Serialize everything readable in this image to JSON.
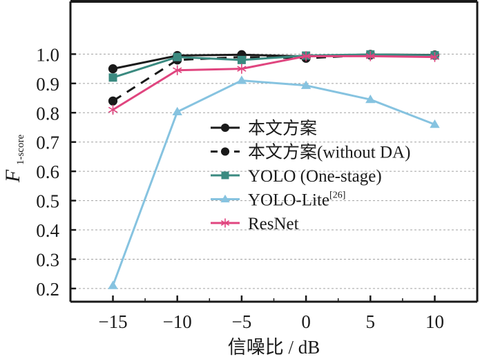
{
  "chart_data": {
    "type": "line",
    "title": "",
    "xlabel": "信噪比 / dB",
    "ylabel_main": "F",
    "ylabel_sub": "1-score",
    "x": [
      -15,
      -10,
      -5,
      0,
      5,
      10
    ],
    "xticks": [
      "−15",
      "−10",
      "−5",
      "0",
      "5",
      "10"
    ],
    "yticks": [
      "0.2",
      "0.3",
      "0.4",
      "0.5",
      "0.6",
      "0.7",
      "0.8",
      "0.9",
      "1.0"
    ],
    "ytick_values": [
      0.2,
      0.3,
      0.4,
      0.5,
      0.6,
      0.7,
      0.8,
      0.9,
      1.0
    ],
    "xlim": [
      -18.3,
      13.3
    ],
    "ylim": [
      0.155,
      1.18
    ],
    "grid": "horizontal-dashed",
    "legend_position": "center-right",
    "series": [
      {
        "name": "本文方案",
        "sup": "",
        "color": "#1a1a1a",
        "marker": "circle",
        "dash": "solid",
        "values": [
          0.95,
          0.995,
          0.998,
          0.992,
          0.999,
          0.997
        ]
      },
      {
        "name": "本文方案(without DA)",
        "sup": "",
        "color": "#1a1a1a",
        "marker": "circle",
        "dash": "dashed",
        "values": [
          0.84,
          0.98,
          0.99,
          0.986,
          0.997,
          0.996
        ]
      },
      {
        "name": "YOLO (One-stage)",
        "sup": "",
        "color": "#3a8a80",
        "marker": "square",
        "dash": "solid",
        "values": [
          0.92,
          0.99,
          0.98,
          0.995,
          0.999,
          0.996
        ]
      },
      {
        "name": "YOLO-Lite",
        "sup": "[26]",
        "color": "#86c3e0",
        "marker": "triangle",
        "dash": "solid",
        "values": [
          0.21,
          0.803,
          0.91,
          0.893,
          0.845,
          0.76
        ]
      },
      {
        "name": "ResNet",
        "sup": "",
        "color": "#e0457f",
        "marker": "asterisk",
        "dash": "solid",
        "values": [
          0.81,
          0.945,
          0.95,
          0.993,
          0.993,
          0.99
        ]
      }
    ]
  }
}
